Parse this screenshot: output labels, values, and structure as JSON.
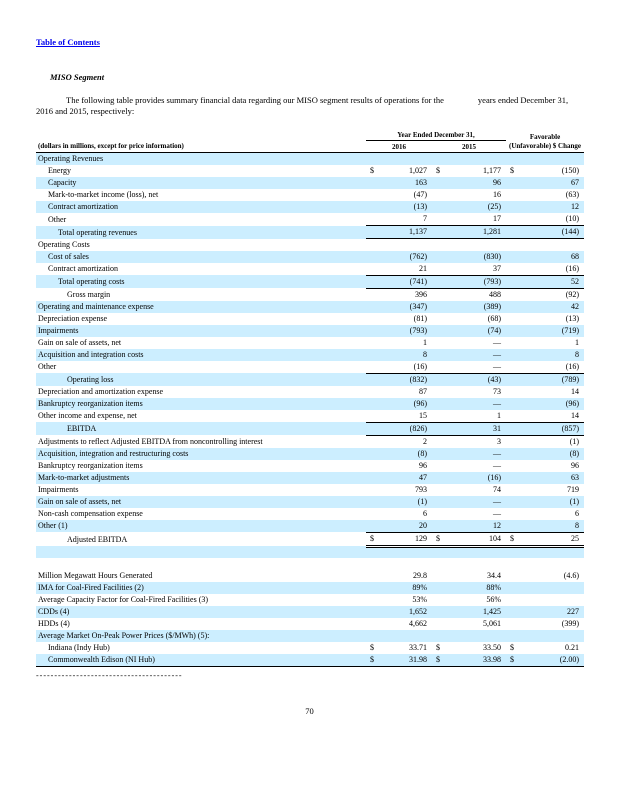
{
  "page": {
    "toc_link": "Table of Contents",
    "section_title": "MISO Segment",
    "intro_lead": "The following table provides summary financial data regarding our MISO segment results of operations for the",
    "intro_tail": "years ended December 31, 2016 and 2015,  respectively:",
    "footnote_divider": "----------------------------------------",
    "page_number": "70"
  },
  "table": {
    "row_label_header": "(dollars in millions, except for price information)",
    "col_group_header": "Year Ended December 31,",
    "years": [
      "2016",
      "2015"
    ],
    "change_header": "Favorable (Unfavorable) $ Change",
    "stripe_color": "#cceeff",
    "rows": [
      {
        "label": "Operating Revenues",
        "ind": 0,
        "cells": [
          "",
          "",
          "",
          "",
          "",
          ""
        ],
        "shade": true,
        "rule": ""
      },
      {
        "label": "Energy",
        "ind": 1,
        "cells": [
          "$",
          "1,027",
          "$",
          "1,177",
          "$",
          "(150)"
        ],
        "shade": false,
        "rule": ""
      },
      {
        "label": "Capacity",
        "ind": 1,
        "cells": [
          "",
          "163",
          "",
          "96",
          "",
          "67"
        ],
        "shade": true,
        "rule": ""
      },
      {
        "label": "Mark-to-market income (loss), net",
        "ind": 1,
        "cells": [
          "",
          "(47)",
          "",
          "16",
          "",
          "(63)"
        ],
        "shade": false,
        "rule": ""
      },
      {
        "label": "Contract amortization",
        "ind": 1,
        "cells": [
          "",
          "(13)",
          "",
          "(25)",
          "",
          "12"
        ],
        "shade": true,
        "rule": ""
      },
      {
        "label": "Other",
        "ind": 1,
        "cells": [
          "",
          "7",
          "",
          "17",
          "",
          "(10)"
        ],
        "shade": false,
        "rule": ""
      },
      {
        "label": "Total operating revenues",
        "ind": 2,
        "cells": [
          "",
          "1,137",
          "",
          "1,281",
          "",
          "(144)"
        ],
        "shade": true,
        "rule": "tb"
      },
      {
        "label": "Operating Costs",
        "ind": 0,
        "cells": [
          "",
          "",
          "",
          "",
          "",
          ""
        ],
        "shade": false,
        "rule": ""
      },
      {
        "label": "Cost of sales",
        "ind": 1,
        "cells": [
          "",
          "(762)",
          "",
          "(830)",
          "",
          "68"
        ],
        "shade": true,
        "rule": ""
      },
      {
        "label": "Contract amortization",
        "ind": 1,
        "cells": [
          "",
          "21",
          "",
          "37",
          "",
          "(16)"
        ],
        "shade": false,
        "rule": ""
      },
      {
        "label": "Total operating costs",
        "ind": 2,
        "cells": [
          "",
          "(741)",
          "",
          "(793)",
          "",
          "52"
        ],
        "shade": true,
        "rule": "tb"
      },
      {
        "label": "Gross margin",
        "ind": 3,
        "cells": [
          "",
          "396",
          "",
          "488",
          "",
          "(92)"
        ],
        "shade": false,
        "rule": ""
      },
      {
        "label": "Operating and maintenance expense",
        "ind": 0,
        "cells": [
          "",
          "(347)",
          "",
          "(389)",
          "",
          "42"
        ],
        "shade": true,
        "rule": ""
      },
      {
        "label": "Depreciation expense",
        "ind": 0,
        "cells": [
          "",
          "(81)",
          "",
          "(68)",
          "",
          "(13)"
        ],
        "shade": false,
        "rule": ""
      },
      {
        "label": "Impairments",
        "ind": 0,
        "cells": [
          "",
          "(793)",
          "",
          "(74)",
          "",
          "(719)"
        ],
        "shade": true,
        "rule": ""
      },
      {
        "label": "Gain on sale of assets, net",
        "ind": 0,
        "cells": [
          "",
          "1",
          "",
          "—",
          "",
          "1"
        ],
        "shade": false,
        "rule": ""
      },
      {
        "label": "Acquisition and integration costs",
        "ind": 0,
        "cells": [
          "",
          "8",
          "",
          "—",
          "",
          "8"
        ],
        "shade": true,
        "rule": ""
      },
      {
        "label": "Other",
        "ind": 0,
        "cells": [
          "",
          "(16)",
          "",
          "—",
          "",
          "(16)"
        ],
        "shade": false,
        "rule": ""
      },
      {
        "label": "Operating loss",
        "ind": 3,
        "cells": [
          "",
          "(832)",
          "",
          "(43)",
          "",
          "(789)"
        ],
        "shade": true,
        "rule": "t"
      },
      {
        "label": "Depreciation and amortization expense",
        "ind": 0,
        "cells": [
          "",
          "87",
          "",
          "73",
          "",
          "14"
        ],
        "shade": false,
        "rule": ""
      },
      {
        "label": "Bankruptcy reorganization items",
        "ind": 0,
        "cells": [
          "",
          "(96)",
          "",
          "—",
          "",
          "(96)"
        ],
        "shade": true,
        "rule": ""
      },
      {
        "label": "Other income and expense, net",
        "ind": 0,
        "cells": [
          "",
          "15",
          "",
          "1",
          "",
          "14"
        ],
        "shade": false,
        "rule": ""
      },
      {
        "label": "EBITDA",
        "ind": 3,
        "cells": [
          "",
          "(826)",
          "",
          "31",
          "",
          "(857)"
        ],
        "shade": true,
        "rule": "tb"
      },
      {
        "label": "Adjustments to reflect Adjusted EBITDA from noncontrolling interest",
        "ind": 0,
        "cells": [
          "",
          "2",
          "",
          "3",
          "",
          "(1)"
        ],
        "shade": false,
        "rule": ""
      },
      {
        "label": "Acquisition, integration and restructuring costs",
        "ind": 0,
        "cells": [
          "",
          "(8)",
          "",
          "—",
          "",
          "(8)"
        ],
        "shade": true,
        "rule": ""
      },
      {
        "label": "Bankruptcy reorganization items",
        "ind": 0,
        "cells": [
          "",
          "96",
          "",
          "—",
          "",
          "96"
        ],
        "shade": false,
        "rule": ""
      },
      {
        "label": "Mark-to-market adjustments",
        "ind": 0,
        "cells": [
          "",
          "47",
          "",
          "(16)",
          "",
          "63"
        ],
        "shade": true,
        "rule": ""
      },
      {
        "label": "Impairments",
        "ind": 0,
        "cells": [
          "",
          "793",
          "",
          "74",
          "",
          "719"
        ],
        "shade": false,
        "rule": ""
      },
      {
        "label": "Gain on sale of assets, net",
        "ind": 0,
        "cells": [
          "",
          "(1)",
          "",
          "—",
          "",
          "(1)"
        ],
        "shade": true,
        "rule": ""
      },
      {
        "label": "Non-cash compensation expense",
        "ind": 0,
        "cells": [
          "",
          "6",
          "",
          "—",
          "",
          "6"
        ],
        "shade": false,
        "rule": ""
      },
      {
        "label": "Other (1)",
        "ind": 0,
        "cells": [
          "",
          "20",
          "",
          "12",
          "",
          "8"
        ],
        "shade": true,
        "rule": ""
      },
      {
        "label": "Adjusted EBITDA",
        "ind": 3,
        "cells": [
          "$",
          "129",
          "$",
          "104",
          "$",
          "25"
        ],
        "shade": false,
        "rule": "t2b"
      },
      {
        "label": "",
        "ind": 0,
        "cells": [
          "",
          "",
          "",
          "",
          "",
          ""
        ],
        "shade": true,
        "rule": ""
      },
      {
        "label": "",
        "ind": 0,
        "cells": [
          "",
          "",
          "",
          "",
          "",
          ""
        ],
        "shade": false,
        "rule": ""
      },
      {
        "label": "Million Megawatt Hours Generated",
        "ind": 0,
        "cells": [
          "",
          "29.8",
          "",
          "34.4",
          "",
          "(4.6)"
        ],
        "shade": false,
        "rule": ""
      },
      {
        "label": "IMA for Coal-Fired Facilities (2)",
        "ind": 0,
        "cells": [
          "",
          "89%",
          "",
          "88%",
          "",
          ""
        ],
        "shade": true,
        "rule": ""
      },
      {
        "label": "Average Capacity Factor for Coal-Fired Facilities (3)",
        "ind": 0,
        "cells": [
          "",
          "53%",
          "",
          "56%",
          "",
          ""
        ],
        "shade": false,
        "rule": ""
      },
      {
        "label": "CDDs (4)",
        "ind": 0,
        "cells": [
          "",
          "1,652",
          "",
          "1,425",
          "",
          "227"
        ],
        "shade": true,
        "rule": ""
      },
      {
        "label": "HDDs (4)",
        "ind": 0,
        "cells": [
          "",
          "4,662",
          "",
          "5,061",
          "",
          "(399)"
        ],
        "shade": false,
        "rule": ""
      },
      {
        "label": "Average Market On-Peak Power Prices ($/MWh) (5):",
        "ind": 0,
        "cells": [
          "",
          "",
          "",
          "",
          "",
          ""
        ],
        "shade": true,
        "rule": ""
      },
      {
        "label": "Indiana (Indy Hub)",
        "ind": 1,
        "cells": [
          "$",
          "33.71",
          "$",
          "33.50",
          "$",
          "0.21"
        ],
        "shade": false,
        "rule": ""
      },
      {
        "label": "Commonwealth Edison (NI Hub)",
        "ind": 1,
        "cells": [
          "$",
          "31.98",
          "$",
          "33.98",
          "$",
          "(2.00)"
        ],
        "shade": true,
        "rule": "bot"
      }
    ]
  }
}
